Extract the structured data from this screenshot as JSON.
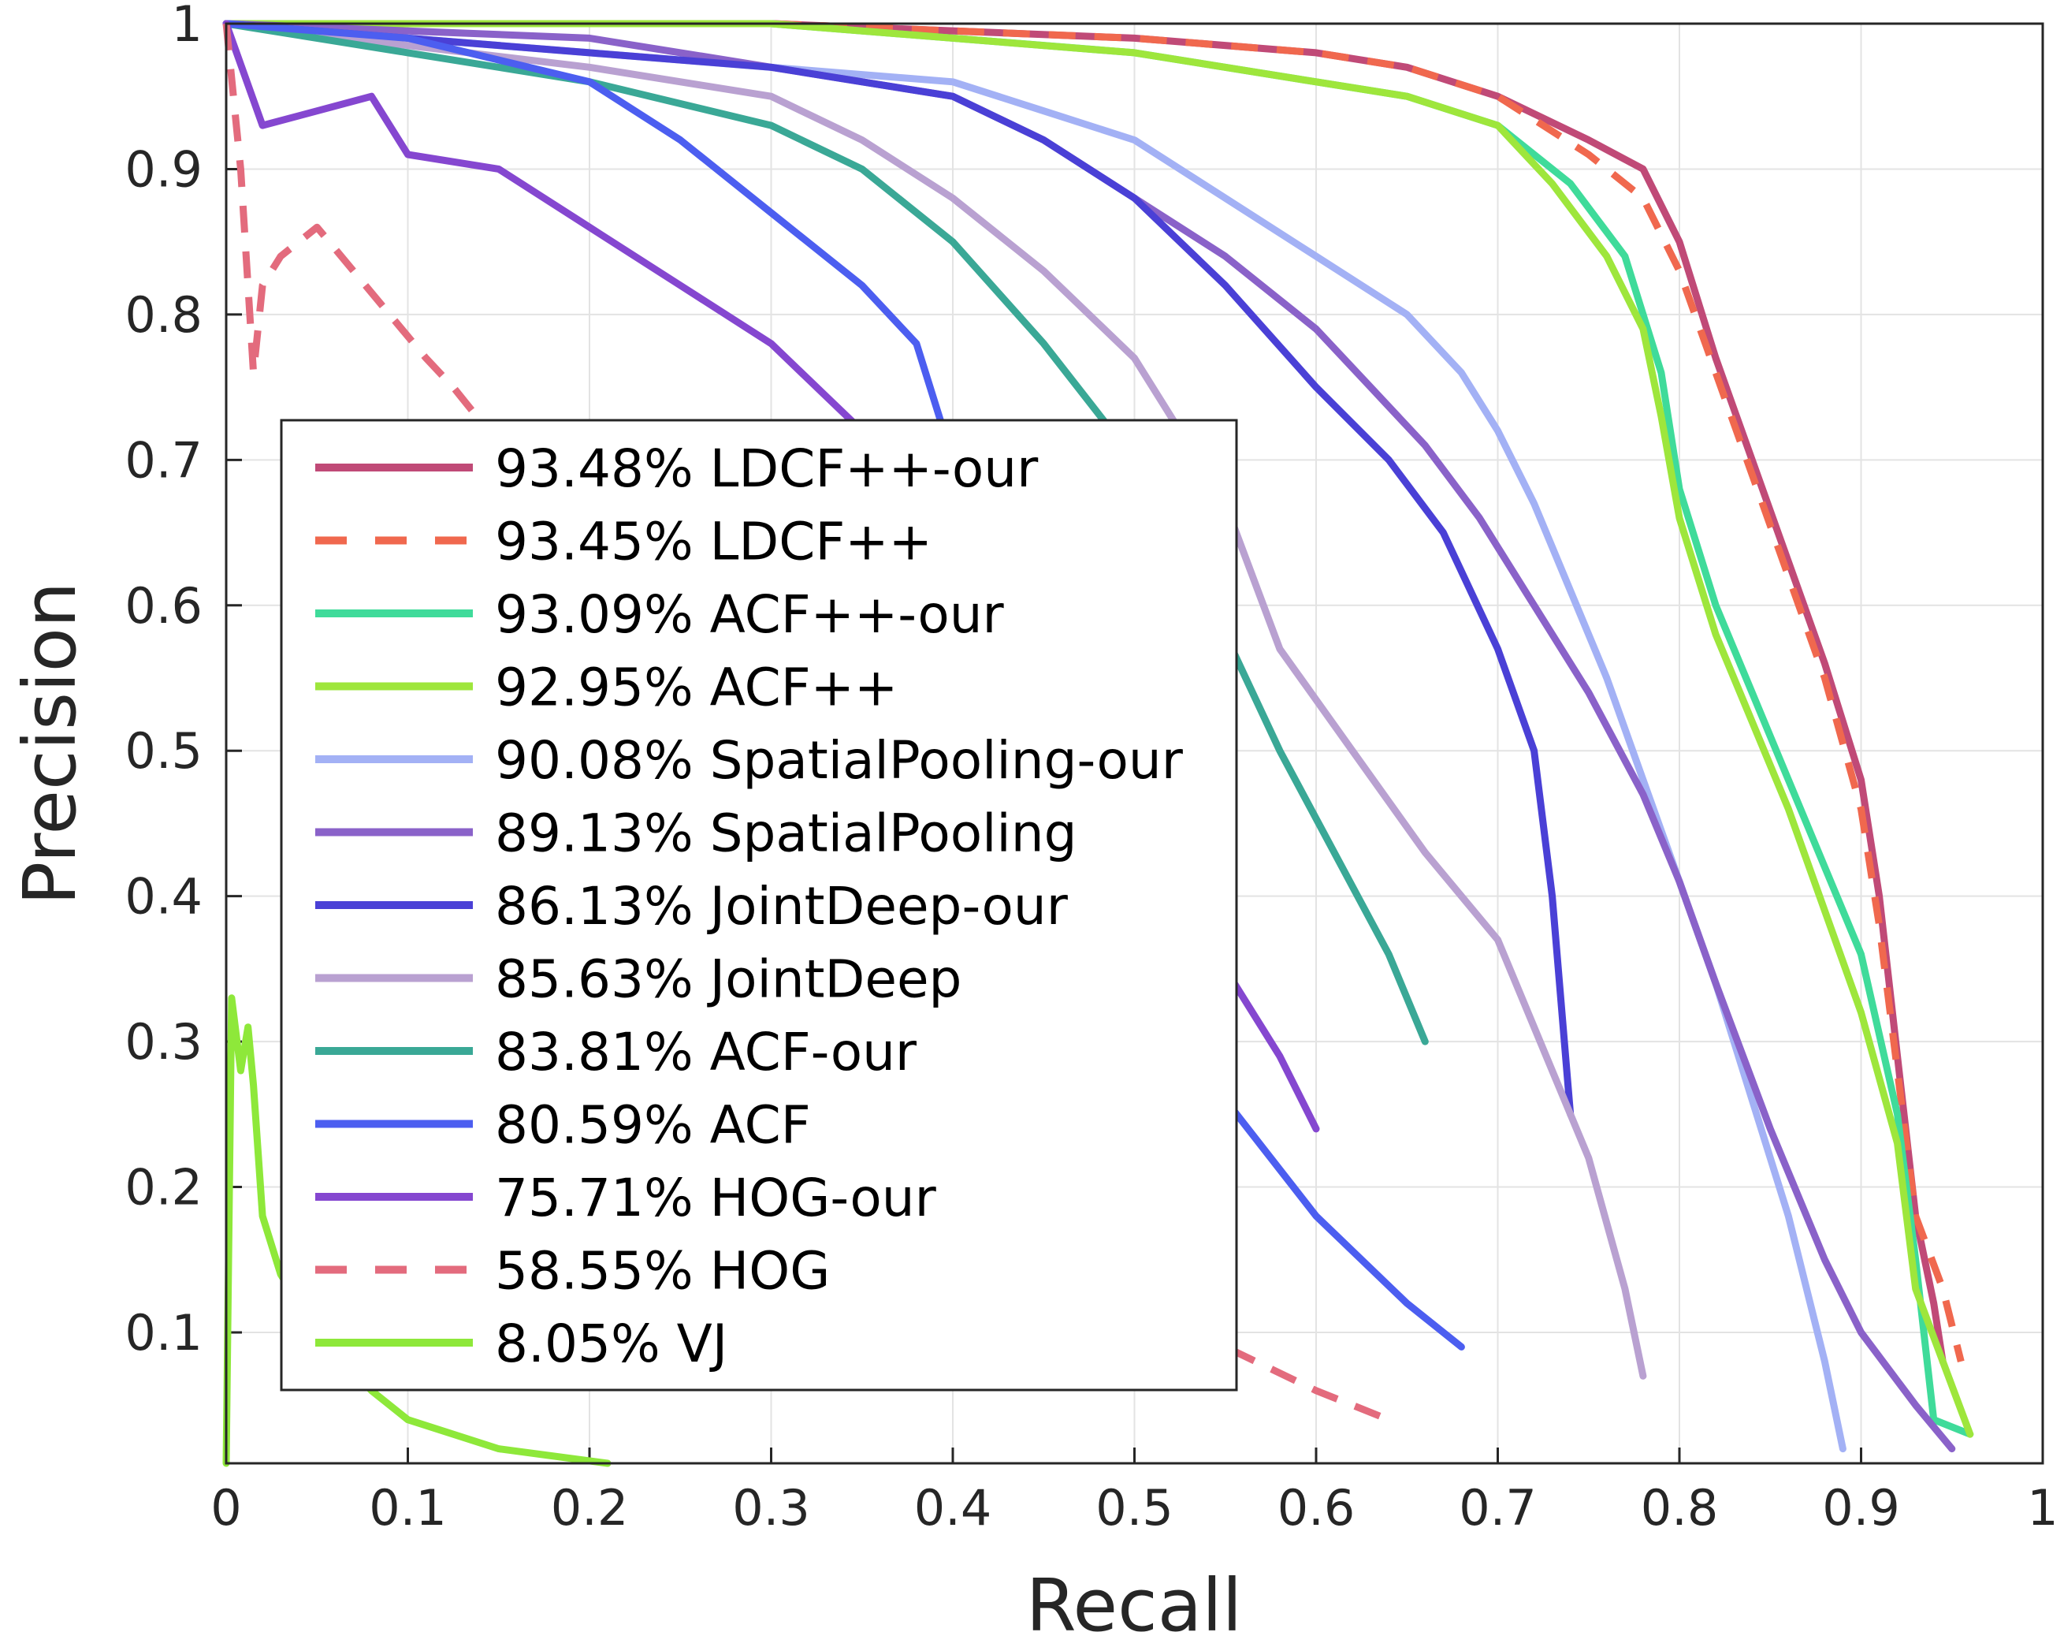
{
  "chart_data": {
    "type": "line",
    "title": "",
    "xlabel": "Recall",
    "ylabel": "Precision",
    "xlim": [
      0,
      1
    ],
    "ylim": [
      0.01,
      1
    ],
    "xticks": [
      0,
      0.1,
      0.2,
      0.3,
      0.4,
      0.5,
      0.6,
      0.7,
      0.8,
      0.9,
      1
    ],
    "xtick_labels": [
      "0",
      "0.1",
      "0.2",
      "0.3",
      "0.4",
      "0.5",
      "0.6",
      "0.7",
      "0.8",
      "0.9",
      "1"
    ],
    "yticks": [
      0.1,
      0.2,
      0.3,
      0.4,
      0.5,
      0.6,
      0.7,
      0.8,
      0.9,
      1
    ],
    "ytick_labels": [
      "0.1",
      "0.2",
      "0.3",
      "0.4",
      "0.5",
      "0.6",
      "0.7",
      "0.8",
      "0.9",
      "1"
    ],
    "grid": true,
    "legend_position": "center-left",
    "series": [
      {
        "name": "93.48% LDCF++-our",
        "color": "#c04a77",
        "dash": "solid",
        "x": [
          0.0,
          0.3,
          0.5,
          0.6,
          0.65,
          0.7,
          0.75,
          0.78,
          0.8,
          0.82,
          0.84,
          0.86,
          0.88,
          0.9,
          0.91,
          0.92,
          0.93,
          0.94,
          0.945
        ],
        "y": [
          1.0,
          1.0,
          0.99,
          0.98,
          0.97,
          0.95,
          0.92,
          0.9,
          0.85,
          0.77,
          0.7,
          0.63,
          0.56,
          0.48,
          0.4,
          0.29,
          0.18,
          0.12,
          0.08
        ]
      },
      {
        "name": "93.45% LDCF++",
        "color": "#f0684e",
        "dash": "dashed",
        "x": [
          0.0,
          0.3,
          0.5,
          0.6,
          0.65,
          0.7,
          0.75,
          0.78,
          0.8,
          0.82,
          0.84,
          0.86,
          0.88,
          0.9,
          0.91,
          0.92,
          0.93,
          0.945,
          0.955
        ],
        "y": [
          1.0,
          1.0,
          0.99,
          0.98,
          0.97,
          0.95,
          0.91,
          0.88,
          0.83,
          0.76,
          0.69,
          0.62,
          0.55,
          0.46,
          0.38,
          0.28,
          0.18,
          0.13,
          0.08
        ]
      },
      {
        "name": "93.09% ACF++-our",
        "color": "#3fdb9a",
        "dash": "solid",
        "x": [
          0.0,
          0.1,
          0.2,
          0.3,
          0.4,
          0.5,
          0.6,
          0.65,
          0.7,
          0.74,
          0.77,
          0.79,
          0.8,
          0.82,
          0.84,
          0.86,
          0.88,
          0.9,
          0.92,
          0.93,
          0.94,
          0.96
        ],
        "y": [
          1.0,
          1.0,
          1.0,
          1.0,
          0.99,
          0.98,
          0.96,
          0.95,
          0.93,
          0.89,
          0.84,
          0.76,
          0.68,
          0.6,
          0.54,
          0.48,
          0.42,
          0.36,
          0.25,
          0.15,
          0.04,
          0.03
        ]
      },
      {
        "name": "92.95% ACF++",
        "color": "#9ee63c",
        "dash": "solid",
        "x": [
          0.0,
          0.3,
          0.5,
          0.6,
          0.65,
          0.7,
          0.73,
          0.76,
          0.78,
          0.79,
          0.8,
          0.82,
          0.84,
          0.86,
          0.88,
          0.9,
          0.92,
          0.93,
          0.96
        ],
        "y": [
          1.0,
          1.0,
          0.98,
          0.96,
          0.95,
          0.93,
          0.89,
          0.84,
          0.79,
          0.73,
          0.66,
          0.58,
          0.52,
          0.46,
          0.39,
          0.32,
          0.23,
          0.13,
          0.03
        ]
      },
      {
        "name": "90.08% SpatialPooling-our",
        "color": "#a3b1f5",
        "dash": "solid",
        "x": [
          0.0,
          0.2,
          0.4,
          0.45,
          0.5,
          0.55,
          0.6,
          0.65,
          0.68,
          0.7,
          0.72,
          0.74,
          0.76,
          0.78,
          0.8,
          0.82,
          0.84,
          0.86,
          0.88,
          0.89
        ],
        "y": [
          1.0,
          0.98,
          0.96,
          0.94,
          0.92,
          0.88,
          0.84,
          0.8,
          0.76,
          0.72,
          0.67,
          0.61,
          0.55,
          0.48,
          0.41,
          0.34,
          0.26,
          0.18,
          0.08,
          0.02
        ]
      },
      {
        "name": "89.13% SpatialPooling",
        "color": "#8a62c9",
        "dash": "solid",
        "x": [
          0.0,
          0.2,
          0.3,
          0.4,
          0.45,
          0.5,
          0.55,
          0.6,
          0.63,
          0.66,
          0.69,
          0.72,
          0.75,
          0.78,
          0.8,
          0.82,
          0.85,
          0.88,
          0.9,
          0.93,
          0.95
        ],
        "y": [
          1.0,
          0.99,
          0.97,
          0.95,
          0.92,
          0.88,
          0.84,
          0.79,
          0.75,
          0.71,
          0.66,
          0.6,
          0.54,
          0.47,
          0.41,
          0.34,
          0.24,
          0.15,
          0.1,
          0.05,
          0.02
        ]
      },
      {
        "name": "86.13% JointDeep-our",
        "color": "#4a40d6",
        "dash": "solid",
        "x": [
          0.0,
          0.1,
          0.2,
          0.3,
          0.4,
          0.45,
          0.5,
          0.55,
          0.6,
          0.64,
          0.67,
          0.7,
          0.72,
          0.73,
          0.74
        ],
        "y": [
          1.0,
          0.99,
          0.98,
          0.97,
          0.95,
          0.92,
          0.88,
          0.82,
          0.75,
          0.7,
          0.65,
          0.57,
          0.5,
          0.4,
          0.25
        ]
      },
      {
        "name": "85.63% JointDeep",
        "color": "#b9a1d1",
        "dash": "solid",
        "x": [
          0.0,
          0.2,
          0.3,
          0.35,
          0.4,
          0.45,
          0.5,
          0.55,
          0.58,
          0.62,
          0.66,
          0.7,
          0.73,
          0.75,
          0.77,
          0.78
        ],
        "y": [
          1.0,
          0.97,
          0.95,
          0.92,
          0.88,
          0.83,
          0.77,
          0.67,
          0.57,
          0.5,
          0.43,
          0.37,
          0.28,
          0.22,
          0.13,
          0.07
        ]
      },
      {
        "name": "83.81% ACF-our",
        "color": "#3aa896",
        "dash": "solid",
        "x": [
          0.0,
          0.1,
          0.2,
          0.3,
          0.35,
          0.4,
          0.45,
          0.5,
          0.55,
          0.58,
          0.61,
          0.64,
          0.66
        ],
        "y": [
          1.0,
          0.98,
          0.96,
          0.93,
          0.9,
          0.85,
          0.78,
          0.7,
          0.58,
          0.5,
          0.43,
          0.36,
          0.3
        ]
      },
      {
        "name": "80.59% ACF",
        "color": "#4c5ef0",
        "dash": "solid",
        "x": [
          0.0,
          0.1,
          0.2,
          0.25,
          0.3,
          0.35,
          0.38,
          0.4,
          0.45,
          0.5,
          0.55,
          0.6,
          0.65,
          0.68
        ],
        "y": [
          1.0,
          0.99,
          0.96,
          0.92,
          0.87,
          0.82,
          0.78,
          0.7,
          0.55,
          0.4,
          0.26,
          0.18,
          0.12,
          0.09
        ]
      },
      {
        "name": "75.71% HOG-our",
        "color": "#8547d0",
        "dash": "solid",
        "x": [
          0.0,
          0.02,
          0.05,
          0.08,
          0.1,
          0.15,
          0.2,
          0.25,
          0.3,
          0.35,
          0.4,
          0.45,
          0.5,
          0.55,
          0.58,
          0.6
        ],
        "y": [
          1.0,
          0.93,
          0.94,
          0.95,
          0.91,
          0.9,
          0.86,
          0.82,
          0.78,
          0.72,
          0.64,
          0.55,
          0.45,
          0.35,
          0.29,
          0.24
        ]
      },
      {
        "name": "58.55% HOG",
        "color": "#e36b7d",
        "dash": "dashed",
        "x": [
          0.0,
          0.008,
          0.015,
          0.02,
          0.03,
          0.05,
          0.07,
          0.09,
          0.11,
          0.125,
          0.55,
          0.6,
          0.64
        ],
        "y": [
          1.0,
          0.9,
          0.76,
          0.82,
          0.84,
          0.86,
          0.83,
          0.8,
          0.77,
          0.75,
          0.09,
          0.06,
          0.04
        ]
      },
      {
        "name": "8.05% VJ",
        "color": "#8ee83a",
        "dash": "solid",
        "x": [
          0.0,
          0.003,
          0.008,
          0.012,
          0.015,
          0.02,
          0.03,
          0.05,
          0.08,
          0.1,
          0.15,
          0.21
        ],
        "y": [
          0.01,
          0.33,
          0.28,
          0.31,
          0.27,
          0.18,
          0.14,
          0.1,
          0.06,
          0.04,
          0.02,
          0.01
        ]
      }
    ]
  }
}
